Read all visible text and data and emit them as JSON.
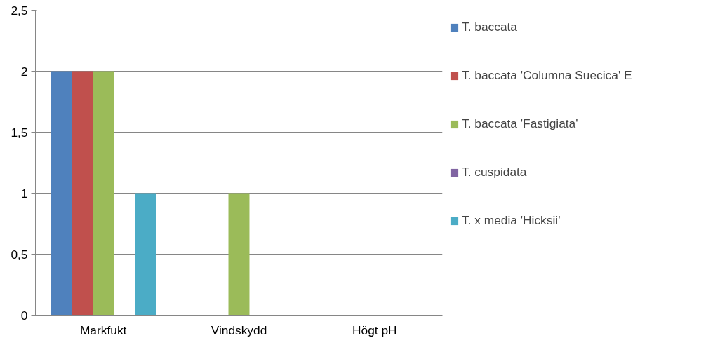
{
  "chart_data": {
    "type": "bar",
    "categories": [
      "Markfukt",
      "Vindskydd",
      "Högt pH"
    ],
    "series": [
      {
        "name": "T. baccata",
        "color": "#4f81bd",
        "values": [
          2,
          0,
          0
        ]
      },
      {
        "name": "T. baccata 'Columna Suecica' E",
        "color": "#c0504d",
        "values": [
          2,
          0,
          0
        ]
      },
      {
        "name": "T. baccata 'Fastigiata'",
        "color": "#9bbb59",
        "values": [
          2,
          1,
          0
        ]
      },
      {
        "name": "T. cuspidata",
        "color": "#8064a2",
        "values": [
          0,
          0,
          0
        ]
      },
      {
        "name": "T. x media 'Hicksii'",
        "color": "#4bacc6",
        "values": [
          1,
          0,
          0
        ]
      }
    ],
    "ylim": [
      0,
      2.5
    ],
    "yticks": [
      0,
      {
        "value": 0.5,
        "label": "0,5"
      },
      1,
      {
        "value": 1.5,
        "label": "1,5"
      },
      2,
      {
        "value": 2.5,
        "label": "2,5"
      }
    ],
    "grid": "y",
    "legend": "right"
  }
}
